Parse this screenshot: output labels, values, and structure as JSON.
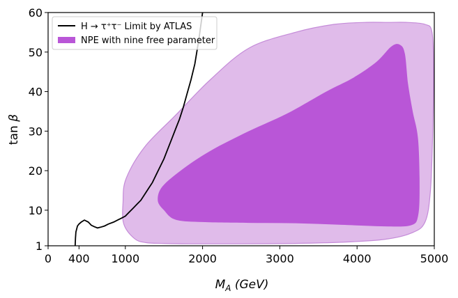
{
  "chart_data": {
    "type": "area",
    "xlabel": "M_A (GeV)",
    "ylabel": "tan β",
    "xlim": [
      0,
      5000
    ],
    "ylim": [
      1,
      60
    ],
    "xticks": [
      0,
      400,
      1000,
      2000,
      3000,
      4000,
      5000
    ],
    "yticks": [
      1,
      10,
      20,
      30,
      40,
      50,
      60
    ],
    "grid": false,
    "legend_position": "top-left",
    "legend": {
      "atlas_label": "H → τ⁺τ⁻  Limit by ATLAS",
      "npe_label": "NPE with nine free parameter"
    },
    "colors": {
      "atlas_line": "#000000",
      "outer_fill": "#e0bbea",
      "outer_edge": "#c48bd8",
      "inner_fill": "#b956d7"
    },
    "series": [
      {
        "name": "H → τ⁺τ⁻ Limit by ATLAS",
        "kind": "line",
        "x": [
          350,
          355,
          360,
          380,
          400,
          430,
          470,
          520,
          560,
          600,
          640,
          680,
          730,
          780,
          850,
          900,
          950,
          1000,
          1050,
          1100,
          1150,
          1200,
          1250,
          1300,
          1350,
          1400,
          1450,
          1500,
          1550,
          1600,
          1650,
          1700,
          1750,
          1800,
          1850,
          1900,
          1950,
          2000
        ],
        "y": [
          1,
          3,
          4.5,
          6,
          6.5,
          7,
          7.5,
          7,
          6.2,
          5.8,
          5.5,
          5.7,
          6,
          6.5,
          7,
          7.5,
          8,
          8.5,
          9.5,
          10.5,
          11.5,
          12.5,
          14,
          15.5,
          17,
          19,
          21,
          23,
          25.5,
          28,
          30.5,
          33,
          36,
          39.5,
          43,
          47,
          53,
          60
        ]
      },
      {
        "name": "NPE outer region",
        "kind": "region",
        "x": [
          1270,
          1120,
          980,
          970,
          1010,
          1250,
          1650,
          2100,
          2600,
          3200,
          3700,
          4100,
          4400,
          4650,
          4880,
          4970,
          4990,
          4980,
          4950,
          4880,
          4700,
          4350,
          3800,
          3200,
          2500,
          1900,
          1500
        ],
        "y": [
          1.8,
          2.8,
          6.5,
          12,
          18,
          26,
          34,
          43,
          51,
          55,
          57,
          57.5,
          57.5,
          57.5,
          57,
          55,
          45,
          30,
          15,
          7,
          4.2,
          2.6,
          1.9,
          1.6,
          1.5,
          1.5,
          1.6
        ]
      },
      {
        "name": "NPE with nine free parameter",
        "kind": "region",
        "x": [
          1500,
          1420,
          1480,
          1750,
          2100,
          2600,
          3100,
          3600,
          3950,
          4250,
          4450,
          4560,
          4620,
          4660,
          4720,
          4790,
          4810,
          4790,
          4700,
          4400,
          3800,
          3200,
          2600,
          2000,
          1650
        ],
        "y": [
          10,
          12.5,
          16,
          20.5,
          25,
          30,
          34.5,
          40,
          43.5,
          47.5,
          51.5,
          51.8,
          49.5,
          42,
          35,
          28,
          16,
          8.5,
          6.2,
          5.9,
          6.3,
          6.7,
          6.8,
          7,
          7.6
        ]
      }
    ]
  }
}
